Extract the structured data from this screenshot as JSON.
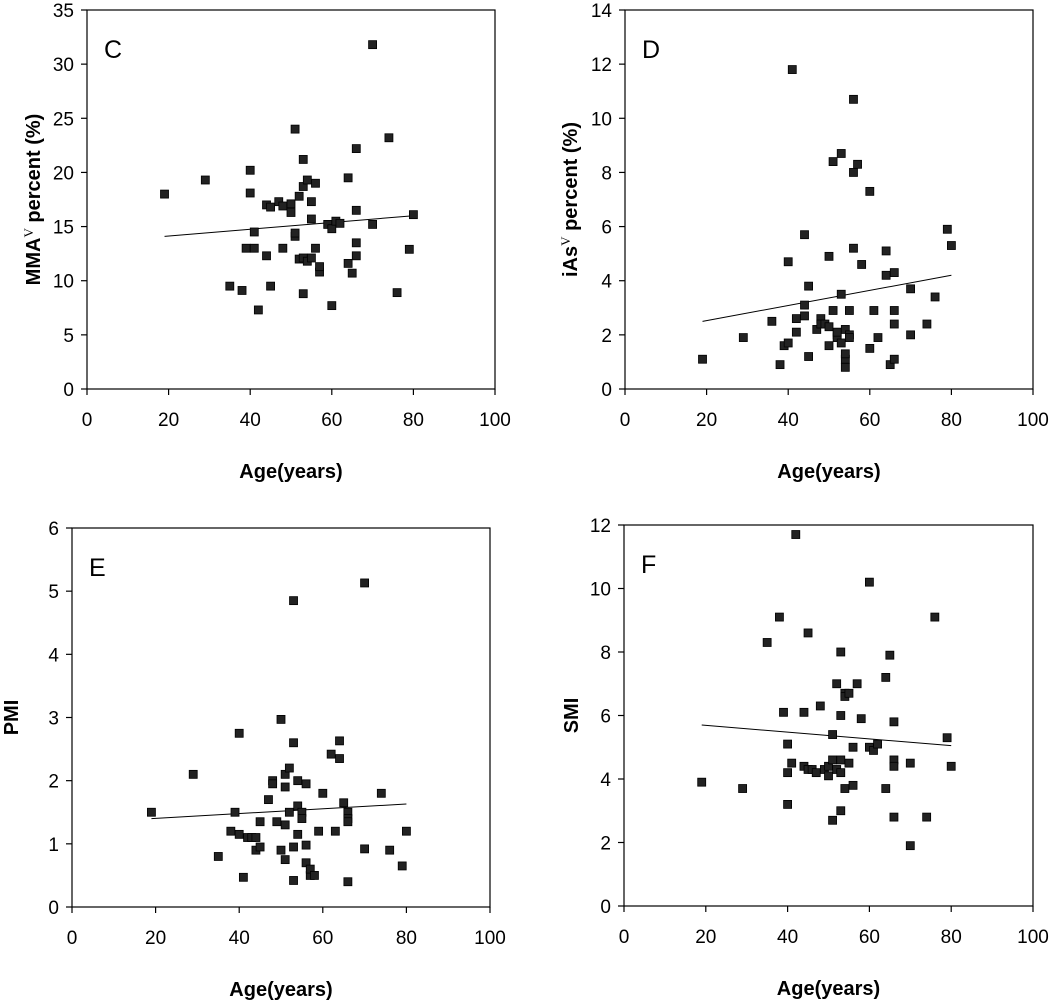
{
  "chart_data": [
    {
      "type": "scatter",
      "panel_letter": "C",
      "xlabel": "Age(years)",
      "ylabel": "MMA",
      "ylabel_sup": "V",
      "ylabel_suffix": " percent (%)",
      "xlim": [
        0,
        100
      ],
      "ylim": [
        0,
        35
      ],
      "xticks": [
        0,
        20,
        40,
        60,
        80,
        100
      ],
      "yticks": [
        0,
        5,
        10,
        15,
        20,
        25,
        30,
        35
      ],
      "grid": false,
      "trendline": {
        "x": [
          19,
          80
        ],
        "y": [
          14.1,
          16.0
        ]
      },
      "points": [
        [
          19,
          18.0
        ],
        [
          29,
          19.3
        ],
        [
          35,
          9.5
        ],
        [
          38,
          9.1
        ],
        [
          39,
          13.0
        ],
        [
          40,
          20.2
        ],
        [
          40,
          18.1
        ],
        [
          41,
          14.5
        ],
        [
          41,
          13.0
        ],
        [
          42,
          7.3
        ],
        [
          44,
          12.3
        ],
        [
          44,
          17.0
        ],
        [
          45,
          16.8
        ],
        [
          45,
          9.5
        ],
        [
          47,
          17.3
        ],
        [
          48,
          16.9
        ],
        [
          48,
          13.0
        ],
        [
          50,
          17.1
        ],
        [
          50,
          16.3
        ],
        [
          51,
          24.0
        ],
        [
          51,
          14.1
        ],
        [
          51,
          14.4
        ],
        [
          52,
          17.8
        ],
        [
          52,
          12.0
        ],
        [
          53,
          21.2
        ],
        [
          53,
          18.7
        ],
        [
          53,
          8.8
        ],
        [
          53,
          12.1
        ],
        [
          54,
          19.3
        ],
        [
          54,
          11.8
        ],
        [
          55,
          17.3
        ],
        [
          55,
          15.7
        ],
        [
          55,
          12.1
        ],
        [
          56,
          19.0
        ],
        [
          56,
          13.0
        ],
        [
          57,
          10.8
        ],
        [
          57,
          11.3
        ],
        [
          59,
          15.2
        ],
        [
          60,
          7.7
        ],
        [
          60,
          14.8
        ],
        [
          61,
          15.5
        ],
        [
          62,
          15.3
        ],
        [
          64,
          19.5
        ],
        [
          64,
          11.6
        ],
        [
          65,
          10.7
        ],
        [
          66,
          22.2
        ],
        [
          66,
          16.5
        ],
        [
          66,
          13.5
        ],
        [
          66,
          12.3
        ],
        [
          70,
          31.8
        ],
        [
          70,
          15.2
        ],
        [
          74,
          23.2
        ],
        [
          76,
          8.9
        ],
        [
          79,
          12.9
        ],
        [
          80,
          16.1
        ]
      ]
    },
    {
      "type": "scatter",
      "panel_letter": "D",
      "xlabel": "Age(years)",
      "ylabel": "iAs",
      "ylabel_sup": "V",
      "ylabel_suffix": " percent (%)",
      "xlim": [
        0,
        100
      ],
      "ylim": [
        0,
        14
      ],
      "xticks": [
        0,
        20,
        40,
        60,
        80,
        100
      ],
      "yticks": [
        0,
        2,
        4,
        6,
        8,
        10,
        12,
        14
      ],
      "grid": false,
      "trendline": {
        "x": [
          19,
          80
        ],
        "y": [
          2.5,
          4.2
        ]
      },
      "points": [
        [
          19,
          1.1
        ],
        [
          29,
          1.9
        ],
        [
          36,
          2.5
        ],
        [
          38,
          0.9
        ],
        [
          39,
          1.6
        ],
        [
          40,
          4.7
        ],
        [
          40,
          1.7
        ],
        [
          41,
          11.8
        ],
        [
          42,
          2.6
        ],
        [
          42,
          2.1
        ],
        [
          44,
          5.7
        ],
        [
          44,
          2.7
        ],
        [
          44,
          3.1
        ],
        [
          45,
          1.2
        ],
        [
          45,
          3.8
        ],
        [
          47,
          2.2
        ],
        [
          48,
          2.6
        ],
        [
          48,
          2.4
        ],
        [
          49,
          2.4
        ],
        [
          50,
          2.3
        ],
        [
          50,
          4.9
        ],
        [
          50,
          1.6
        ],
        [
          51,
          8.4
        ],
        [
          51,
          2.9
        ],
        [
          52,
          2.0
        ],
        [
          52,
          1.9
        ],
        [
          52,
          2.1
        ],
        [
          53,
          8.7
        ],
        [
          53,
          3.5
        ],
        [
          53,
          1.7
        ],
        [
          54,
          2.2
        ],
        [
          54,
          1.1
        ],
        [
          54,
          0.8
        ],
        [
          54,
          1.3
        ],
        [
          55,
          2.0
        ],
        [
          55,
          1.9
        ],
        [
          55,
          2.9
        ],
        [
          56,
          10.7
        ],
        [
          56,
          8.0
        ],
        [
          56,
          5.2
        ],
        [
          57,
          8.3
        ],
        [
          58,
          4.6
        ],
        [
          60,
          7.3
        ],
        [
          60,
          1.5
        ],
        [
          61,
          2.9
        ],
        [
          62,
          1.9
        ],
        [
          64,
          5.1
        ],
        [
          64,
          4.2
        ],
        [
          65,
          0.9
        ],
        [
          66,
          4.3
        ],
        [
          66,
          2.9
        ],
        [
          66,
          2.4
        ],
        [
          66,
          1.1
        ],
        [
          70,
          3.7
        ],
        [
          70,
          2.0
        ],
        [
          74,
          2.4
        ],
        [
          76,
          3.4
        ],
        [
          79,
          5.9
        ],
        [
          80,
          5.3
        ]
      ]
    },
    {
      "type": "scatter",
      "panel_letter": "E",
      "xlabel": "Age(years)",
      "ylabel": "PMI",
      "ylabel_sup": "",
      "ylabel_suffix": "",
      "xlim": [
        0,
        100
      ],
      "ylim": [
        0,
        6
      ],
      "xticks": [
        0,
        20,
        40,
        60,
        80,
        100
      ],
      "yticks": [
        0,
        1,
        2,
        3,
        4,
        5,
        6
      ],
      "grid": false,
      "trendline": {
        "x": [
          19,
          80
        ],
        "y": [
          1.4,
          1.63
        ]
      },
      "points": [
        [
          19,
          1.5
        ],
        [
          29,
          2.1
        ],
        [
          35,
          0.8
        ],
        [
          38,
          1.2
        ],
        [
          39,
          1.5
        ],
        [
          40,
          2.75
        ],
        [
          40,
          1.15
        ],
        [
          41,
          0.47
        ],
        [
          42,
          1.1
        ],
        [
          43,
          1.1
        ],
        [
          44,
          1.1
        ],
        [
          44,
          0.9
        ],
        [
          45,
          1.35
        ],
        [
          45,
          0.95
        ],
        [
          47,
          1.7
        ],
        [
          48,
          2.0
        ],
        [
          48,
          1.95
        ],
        [
          49,
          1.35
        ],
        [
          50,
          2.97
        ],
        [
          50,
          0.9
        ],
        [
          51,
          2.1
        ],
        [
          51,
          1.3
        ],
        [
          51,
          0.75
        ],
        [
          51,
          1.9
        ],
        [
          52,
          2.2
        ],
        [
          52,
          1.5
        ],
        [
          53,
          4.85
        ],
        [
          53,
          2.6
        ],
        [
          53,
          0.95
        ],
        [
          53,
          0.42
        ],
        [
          54,
          1.6
        ],
        [
          54,
          1.15
        ],
        [
          54,
          2.0
        ],
        [
          55,
          1.5
        ],
        [
          55,
          1.4
        ],
        [
          56,
          0.98
        ],
        [
          56,
          1.95
        ],
        [
          56,
          0.7
        ],
        [
          57,
          0.5
        ],
        [
          57,
          0.6
        ],
        [
          58,
          0.5
        ],
        [
          59,
          1.2
        ],
        [
          60,
          1.8
        ],
        [
          62,
          2.42
        ],
        [
          63,
          1.2
        ],
        [
          64,
          2.63
        ],
        [
          64,
          2.35
        ],
        [
          65,
          1.65
        ],
        [
          66,
          1.5
        ],
        [
          66,
          1.4
        ],
        [
          66,
          1.35
        ],
        [
          66,
          0.4
        ],
        [
          70,
          5.13
        ],
        [
          70,
          0.92
        ],
        [
          74,
          1.8
        ],
        [
          76,
          0.9
        ],
        [
          79,
          0.65
        ],
        [
          80,
          1.2
        ]
      ]
    },
    {
      "type": "scatter",
      "panel_letter": "F",
      "xlabel": "Age(years)",
      "ylabel": "SMI",
      "ylabel_sup": "",
      "ylabel_suffix": "",
      "xlim": [
        0,
        100
      ],
      "ylim": [
        0,
        12
      ],
      "xticks": [
        0,
        20,
        40,
        60,
        80,
        100
      ],
      "yticks": [
        0,
        2,
        4,
        6,
        8,
        10,
        12
      ],
      "grid": false,
      "trendline": {
        "x": [
          19,
          80
        ],
        "y": [
          5.7,
          5.05
        ]
      },
      "points": [
        [
          19,
          3.9
        ],
        [
          29,
          3.7
        ],
        [
          35,
          8.3
        ],
        [
          38,
          9.1
        ],
        [
          39,
          6.1
        ],
        [
          40,
          5.1
        ],
        [
          40,
          4.2
        ],
        [
          40,
          3.2
        ],
        [
          41,
          4.5
        ],
        [
          42,
          11.7
        ],
        [
          44,
          4.4
        ],
        [
          44,
          6.1
        ],
        [
          45,
          8.6
        ],
        [
          45,
          4.3
        ],
        [
          46,
          4.3
        ],
        [
          47,
          4.2
        ],
        [
          48,
          6.3
        ],
        [
          49,
          4.3
        ],
        [
          50,
          4.4
        ],
        [
          50,
          4.1
        ],
        [
          51,
          2.7
        ],
        [
          51,
          5.4
        ],
        [
          51,
          4.6
        ],
        [
          52,
          7.0
        ],
        [
          52,
          4.3
        ],
        [
          53,
          8.0
        ],
        [
          53,
          6.0
        ],
        [
          53,
          4.6
        ],
        [
          53,
          4.2
        ],
        [
          53,
          3.0
        ],
        [
          54,
          6.7
        ],
        [
          54,
          6.6
        ],
        [
          54,
          3.7
        ],
        [
          55,
          6.7
        ],
        [
          55,
          4.5
        ],
        [
          56,
          5.0
        ],
        [
          56,
          3.8
        ],
        [
          57,
          7.0
        ],
        [
          58,
          5.9
        ],
        [
          60,
          10.2
        ],
        [
          60,
          5.0
        ],
        [
          61,
          4.9
        ],
        [
          62,
          5.1
        ],
        [
          64,
          7.2
        ],
        [
          64,
          3.7
        ],
        [
          65,
          7.9
        ],
        [
          66,
          5.8
        ],
        [
          66,
          4.6
        ],
        [
          66,
          4.4
        ],
        [
          66,
          2.8
        ],
        [
          70,
          4.5
        ],
        [
          70,
          1.9
        ],
        [
          74,
          2.8
        ],
        [
          76,
          9.1
        ],
        [
          79,
          5.3
        ],
        [
          80,
          4.4
        ]
      ]
    }
  ]
}
